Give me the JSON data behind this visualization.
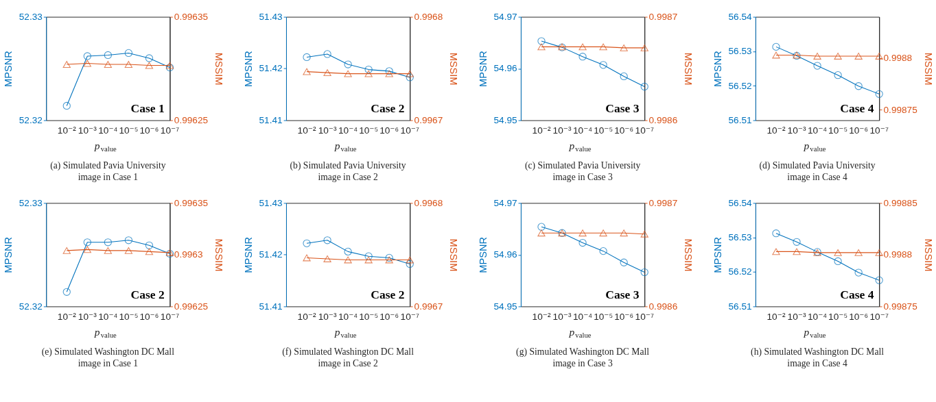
{
  "chart_data": [
    {
      "type": "line",
      "title": "(a) Simulated Pavia University\nimage in Case 1",
      "xlabel": "p$_{value}$",
      "ylabel": "MPSNR",
      "y2label": "MSSIM",
      "annotations": [
        "Case 1"
      ],
      "categories": [
        "10⁻²",
        "10⁻³",
        "10⁻⁴",
        "10⁻⁵",
        "10⁻⁶",
        "10⁻⁷"
      ],
      "ylim": [
        52.32,
        52.33
      ],
      "yticks": [
        52.32,
        52.33
      ],
      "y2lim": [
        0.99625,
        0.99635
      ],
      "y2ticks": [
        0.99625,
        0.99635
      ],
      "line_style": "solid",
      "series": [
        {
          "color": "#0072bd",
          "marker": "circle",
          "values": [
            52.3214,
            52.3262,
            52.3263,
            52.3265,
            52.326,
            52.3251
          ]
        },
        {
          "color": "#d95319",
          "marker": "triangle",
          "axis": "y2",
          "values": [
            0.996304,
            0.996305,
            0.996304,
            0.996304,
            0.996303,
            0.996303
          ]
        }
      ]
    },
    {
      "type": "line",
      "title": "(b) Simulated Pavia University\nimage in Case 2",
      "xlabel": "p$_{value}$",
      "ylabel": "MPSNR",
      "y2label": "MSSIM",
      "annotations": [
        "Case 2"
      ],
      "categories": [
        "10⁻²",
        "10⁻³",
        "10⁻⁴",
        "10⁻⁵",
        "10⁻⁶",
        "10⁻⁷"
      ],
      "ylim": [
        51.41,
        51.43
      ],
      "yticks": [
        51.41,
        51.42,
        51.43
      ],
      "y2lim": [
        0.9967,
        0.9968
      ],
      "y2ticks": [
        0.9967,
        0.9968
      ],
      "line_style": "solid",
      "series": [
        {
          "color": "#0072bd",
          "marker": "circle",
          "values": [
            51.4222,
            51.4228,
            51.4208,
            51.4198,
            51.4195,
            51.4183
          ]
        },
        {
          "color": "#d95319",
          "marker": "triangle",
          "axis": "y2",
          "values": [
            0.996747,
            0.996746,
            0.996745,
            0.996745,
            0.996745,
            0.996745
          ]
        }
      ]
    },
    {
      "type": "line",
      "title": "(c) Simulated Pavia University\nimage in Case 3",
      "xlabel": "p$_{value}$",
      "ylabel": "MPSNR",
      "y2label": "MSSIM",
      "annotations": [
        "Case 3"
      ],
      "categories": [
        "10⁻²",
        "10⁻³",
        "10⁻⁴",
        "10⁻⁵",
        "10⁻⁶",
        "10⁻⁷"
      ],
      "ylim": [
        54.95,
        54.97
      ],
      "yticks": [
        54.95,
        54.96,
        54.97
      ],
      "y2lim": [
        0.9986,
        0.9987
      ],
      "y2ticks": [
        0.9986,
        0.9987
      ],
      "line_style": "solid",
      "series": [
        {
          "color": "#0072bd",
          "marker": "circle",
          "values": [
            54.9653,
            54.9641,
            54.9623,
            54.9607,
            54.9585,
            54.9565
          ]
        },
        {
          "color": "#d95319",
          "marker": "triangle",
          "axis": "y2",
          "values": [
            0.998671,
            0.998671,
            0.998671,
            0.998671,
            0.99867,
            0.99867
          ]
        }
      ]
    },
    {
      "type": "line",
      "title": "(d) Simulated Pavia University\nimage in Case 4",
      "xlabel": "p$_{value}$",
      "ylabel": "MPSNR",
      "y2label": "MSSIM",
      "annotations": [
        "Case 4"
      ],
      "categories": [
        "10⁻²",
        "10⁻³",
        "10⁻⁴",
        "10⁻⁵",
        "10⁻⁶",
        "10⁻⁷"
      ],
      "ylim": [
        56.51,
        56.54
      ],
      "yticks": [
        56.51,
        56.52,
        56.53,
        56.54
      ],
      "y2lim": [
        0.99874,
        0.99884
      ],
      "y2ticks": [
        0.99875,
        0.9988
      ],
      "line_style": "solid",
      "series": [
        {
          "color": "#0072bd",
          "marker": "circle",
          "values": [
            56.5313,
            56.5287,
            56.5258,
            56.5231,
            56.5199,
            56.5176
          ]
        },
        {
          "color": "#d95319",
          "marker": "triangle",
          "axis": "y2",
          "values": [
            0.998803,
            0.998803,
            0.998802,
            0.998802,
            0.998802,
            0.998802
          ]
        }
      ]
    },
    {
      "type": "line",
      "title": "(e) Simulated Washington DC Mall\nimage in Case 1",
      "xlabel": "p$_{value}$",
      "ylabel": "MPSNR",
      "y2label": "MSSIM",
      "annotations": [
        "Case 2"
      ],
      "categories": [
        "10⁻²",
        "10⁻³",
        "10⁻⁴",
        "10⁻⁵",
        "10⁻⁶",
        "10⁻⁷"
      ],
      "ylim": [
        52.32,
        52.33
      ],
      "yticks": [
        52.32,
        52.33
      ],
      "y2lim": [
        0.99625,
        0.99635
      ],
      "y2ticks": [
        0.99625,
        0.9963,
        0.99635
      ],
      "line_style": "solid",
      "series": [
        {
          "color": "#0072bd",
          "marker": "circle",
          "values": [
            52.3214,
            52.3262,
            52.3262,
            52.3264,
            52.3259,
            52.3251
          ]
        },
        {
          "color": "#d95319",
          "marker": "triangle",
          "axis": "y2",
          "values": [
            0.996304,
            0.996305,
            0.996304,
            0.996304,
            0.996303,
            0.996302
          ]
        }
      ]
    },
    {
      "type": "line",
      "title": "(f) Simulated Washington DC Mall\nimage in Case 2",
      "xlabel": "p$_{value}$",
      "ylabel": "MPSNR",
      "y2label": "MSSIM",
      "annotations": [
        "Case 2"
      ],
      "categories": [
        "10⁻²",
        "10⁻³",
        "10⁻⁴",
        "10⁻⁵",
        "10⁻⁶",
        "10⁻⁷"
      ],
      "ylim": [
        51.41,
        51.43
      ],
      "yticks": [
        51.41,
        51.42,
        51.43
      ],
      "y2lim": [
        0.9967,
        0.9968
      ],
      "y2ticks": [
        0.9967,
        0.9968
      ],
      "line_style": "solid",
      "series": [
        {
          "color": "#0072bd",
          "marker": "circle",
          "values": [
            51.4222,
            51.4228,
            51.4206,
            51.4197,
            51.4194,
            51.4182
          ]
        },
        {
          "color": "#d95319",
          "marker": "triangle",
          "axis": "y2",
          "values": [
            0.996747,
            0.996746,
            0.996745,
            0.996745,
            0.996745,
            0.996745
          ]
        }
      ]
    },
    {
      "type": "line",
      "title": "(g) Simulated Washington DC Mall\nimage in Case 3",
      "xlabel": "p$_{value}$",
      "ylabel": "MPSNR",
      "y2label": "MSSIM",
      "annotations": [
        "Case 3"
      ],
      "categories": [
        "10⁻²",
        "10⁻³",
        "10⁻⁴",
        "10⁻⁵",
        "10⁻⁶",
        "10⁻⁷"
      ],
      "ylim": [
        54.95,
        54.97
      ],
      "yticks": [
        54.95,
        54.96,
        54.97
      ],
      "y2lim": [
        0.9986,
        0.9987
      ],
      "y2ticks": [
        0.9986,
        0.9987
      ],
      "line_style": "solid",
      "series": [
        {
          "color": "#0072bd",
          "marker": "circle",
          "values": [
            54.9654,
            54.9642,
            54.9623,
            54.9607,
            54.9585,
            54.9566
          ]
        },
        {
          "color": "#d95319",
          "marker": "triangle",
          "axis": "y2",
          "values": [
            0.998671,
            0.998671,
            0.998671,
            0.998671,
            0.998671,
            0.99867
          ]
        }
      ]
    },
    {
      "type": "line",
      "title": "(h) Simulated Washington DC Mall\nimage in Case 4",
      "xlabel": "p$_{value}$",
      "ylabel": "MPSNR",
      "y2label": "MSSIM",
      "annotations": [
        "Case 4"
      ],
      "categories": [
        "10⁻²",
        "10⁻³",
        "10⁻⁴",
        "10⁻⁵",
        "10⁻⁶",
        "10⁻⁷"
      ],
      "ylim": [
        56.51,
        56.54
      ],
      "yticks": [
        56.51,
        56.52,
        56.53,
        56.54
      ],
      "y2lim": [
        0.99875,
        0.99885
      ],
      "y2ticks": [
        0.99875,
        0.9988,
        0.99885
      ],
      "line_style": "solid",
      "series": [
        {
          "color": "#0072bd",
          "marker": "circle",
          "values": [
            56.5312,
            56.5287,
            56.5258,
            56.5231,
            56.5198,
            56.5176
          ]
        },
        {
          "color": "#d95319",
          "marker": "triangle",
          "axis": "y2",
          "values": [
            0.998803,
            0.998803,
            0.998802,
            0.998802,
            0.998802,
            0.998802
          ]
        }
      ]
    }
  ]
}
